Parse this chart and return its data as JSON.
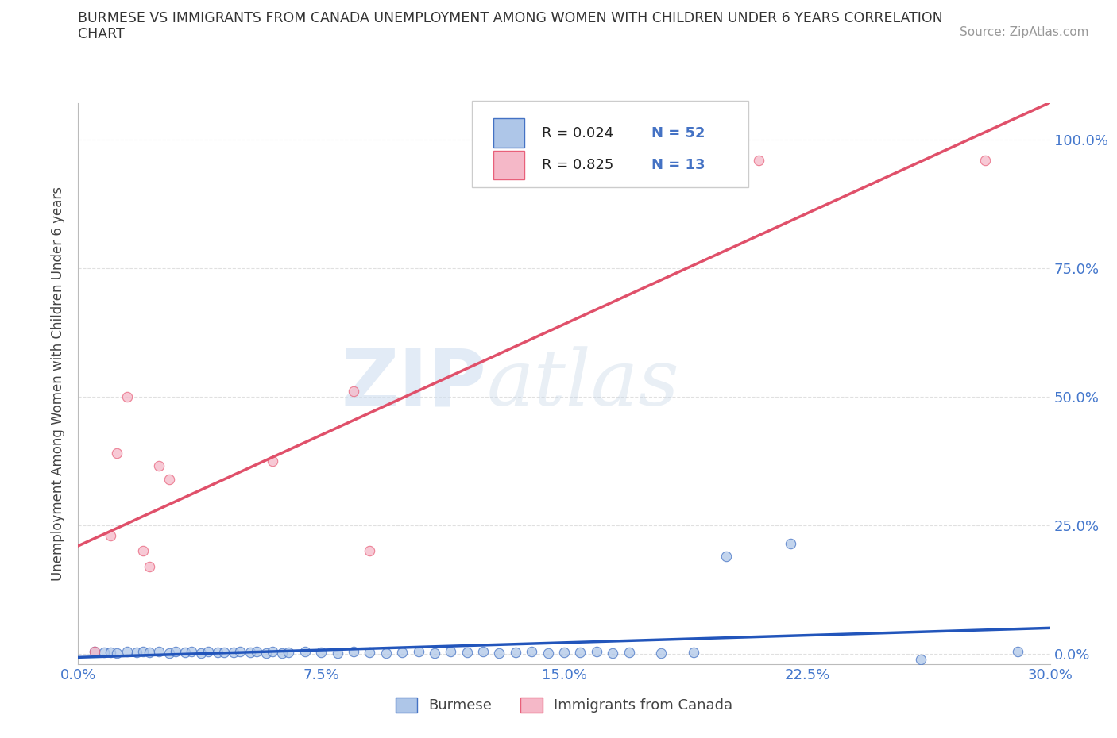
{
  "title_line1": "BURMESE VS IMMIGRANTS FROM CANADA UNEMPLOYMENT AMONG WOMEN WITH CHILDREN UNDER 6 YEARS CORRELATION",
  "title_line2": "CHART",
  "source": "Source: ZipAtlas.com",
  "ylabel": "Unemployment Among Women with Children Under 6 years",
  "watermark": "ZIPatlas",
  "burmese_R": 0.024,
  "burmese_N": 52,
  "canada_R": 0.825,
  "canada_N": 13,
  "xlim": [
    0.0,
    0.3
  ],
  "ylim": [
    -0.02,
    1.07
  ],
  "xticks": [
    0.0,
    0.075,
    0.15,
    0.225,
    0.3
  ],
  "xticklabels": [
    "0.0%",
    "7.5%",
    "15.0%",
    "22.5%",
    "30.0%"
  ],
  "yticks": [
    0.0,
    0.25,
    0.5,
    0.75,
    1.0
  ],
  "yticklabels": [
    "0.0%",
    "25.0%",
    "50.0%",
    "75.0%",
    "100.0%"
  ],
  "burmese_color": "#aec6e8",
  "canada_color": "#f5b8c8",
  "burmese_edge_color": "#4472c4",
  "canada_edge_color": "#e8607a",
  "burmese_line_color": "#2255bb",
  "canada_line_color": "#e0506a",
  "title_color": "#333333",
  "axis_label_color": "#444444",
  "tick_color": "#4477cc",
  "legend_r_color": "#4472c4",
  "grid_color": "#dddddd",
  "burmese_x": [
    0.005,
    0.008,
    0.01,
    0.012,
    0.015,
    0.018,
    0.02,
    0.022,
    0.025,
    0.028,
    0.03,
    0.033,
    0.035,
    0.038,
    0.04,
    0.043,
    0.045,
    0.048,
    0.05,
    0.053,
    0.055,
    0.058,
    0.06,
    0.063,
    0.065,
    0.07,
    0.075,
    0.08,
    0.085,
    0.09,
    0.095,
    0.1,
    0.105,
    0.11,
    0.115,
    0.12,
    0.125,
    0.13,
    0.135,
    0.14,
    0.145,
    0.15,
    0.155,
    0.16,
    0.165,
    0.17,
    0.18,
    0.19,
    0.2,
    0.22,
    0.26,
    0.29
  ],
  "burmese_y": [
    0.005,
    0.003,
    0.003,
    0.002,
    0.005,
    0.003,
    0.005,
    0.003,
    0.004,
    0.002,
    0.005,
    0.003,
    0.004,
    0.002,
    0.005,
    0.003,
    0.003,
    0.003,
    0.004,
    0.003,
    0.004,
    0.002,
    0.005,
    0.002,
    0.003,
    0.004,
    0.003,
    0.002,
    0.004,
    0.003,
    0.002,
    0.003,
    0.004,
    0.002,
    0.004,
    0.003,
    0.004,
    0.002,
    0.003,
    0.005,
    0.002,
    0.003,
    0.003,
    0.004,
    0.002,
    0.003,
    0.002,
    0.003,
    0.19,
    0.215,
    -0.01,
    0.005
  ],
  "canada_x": [
    0.005,
    0.01,
    0.012,
    0.015,
    0.02,
    0.022,
    0.025,
    0.028,
    0.06,
    0.085,
    0.09,
    0.21,
    0.28
  ],
  "canada_y": [
    0.005,
    0.23,
    0.39,
    0.5,
    0.2,
    0.17,
    0.365,
    0.34,
    0.375,
    0.51,
    0.2,
    0.96,
    0.96
  ]
}
